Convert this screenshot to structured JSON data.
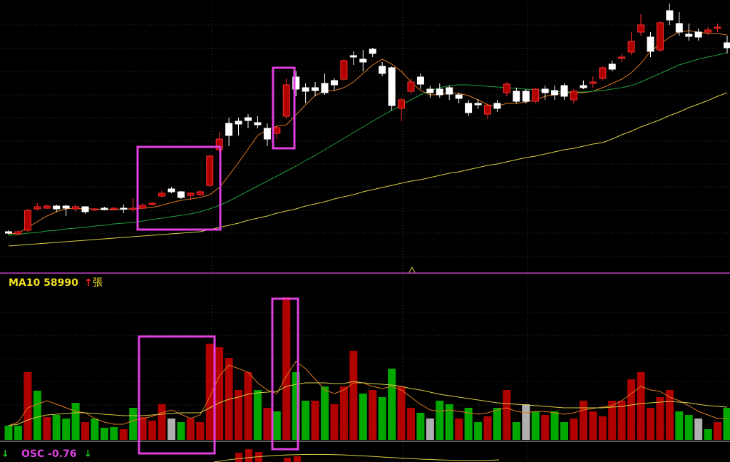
{
  "chart_data": [
    {
      "type": "candlestick",
      "ylim": [
        0,
        385
      ],
      "up_color": "#b00000",
      "up_edge": "#ff3030",
      "down_color": "#ffffff",
      "wick_color": "#ffffff",
      "candles": [
        [
          60,
          62,
          56,
          58
        ],
        [
          57,
          62,
          55,
          60
        ],
        [
          62,
          92,
          60,
          90
        ],
        [
          92,
          100,
          90,
          95
        ],
        [
          93,
          98,
          92,
          96
        ],
        [
          96,
          98,
          88,
          92
        ],
        [
          96,
          98,
          82,
          93
        ],
        [
          92,
          98,
          88,
          95
        ],
        [
          95,
          96,
          85,
          88
        ],
        [
          91,
          93,
          89,
          92
        ],
        [
          93,
          95,
          90,
          91
        ],
        [
          92,
          94,
          90,
          93
        ],
        [
          93,
          98,
          86,
          92
        ],
        [
          92,
          107,
          88,
          93
        ],
        [
          93,
          100,
          92,
          97
        ],
        [
          98,
          101,
          97,
          100
        ],
        [
          110,
          117,
          108,
          114
        ],
        [
          120,
          123,
          114,
          116
        ],
        [
          116,
          117,
          106,
          108
        ],
        [
          111,
          115,
          104,
          114
        ],
        [
          112,
          118,
          110,
          116
        ],
        [
          125,
          168,
          123,
          166
        ],
        [
          175,
          200,
          172,
          190
        ],
        [
          212,
          220,
          180,
          195
        ],
        [
          215,
          220,
          195,
          211
        ],
        [
          220,
          225,
          205,
          216
        ],
        [
          213,
          222,
          205,
          210
        ],
        [
          205,
          212,
          180,
          190
        ],
        [
          198,
          210,
          190,
          206
        ],
        [
          222,
          275,
          218,
          266
        ],
        [
          277,
          285,
          250,
          260
        ],
        [
          262,
          268,
          240,
          257
        ],
        [
          262,
          270,
          250,
          258
        ],
        [
          268,
          282,
          252,
          255
        ],
        [
          272,
          275,
          258,
          266
        ],
        [
          274,
          302,
          272,
          300
        ],
        [
          307,
          313,
          294,
          305
        ],
        [
          302,
          315,
          285,
          298
        ],
        [
          316,
          318,
          305,
          310
        ],
        [
          292,
          298,
          278,
          282
        ],
        [
          290,
          292,
          230,
          237
        ],
        [
          233,
          247,
          215,
          245
        ],
        [
          257,
          275,
          253,
          270
        ],
        [
          277,
          282,
          260,
          267
        ],
        [
          260,
          265,
          248,
          255
        ],
        [
          260,
          268,
          248,
          252
        ],
        [
          262,
          265,
          245,
          253
        ],
        [
          252,
          255,
          240,
          247
        ],
        [
          240,
          245,
          222,
          227
        ],
        [
          240,
          246,
          232,
          238
        ],
        [
          225,
          240,
          218,
          237
        ],
        [
          240,
          245,
          228,
          233
        ],
        [
          255,
          270,
          250,
          267
        ],
        [
          257,
          262,
          240,
          243
        ],
        [
          257,
          260,
          240,
          243
        ],
        [
          243,
          262,
          240,
          260
        ],
        [
          260,
          265,
          245,
          255
        ],
        [
          258,
          265,
          245,
          252
        ],
        [
          265,
          268,
          245,
          250
        ],
        [
          245,
          260,
          240,
          257
        ],
        [
          265,
          272,
          260,
          262
        ],
        [
          268,
          278,
          262,
          270
        ],
        [
          275,
          292,
          272,
          290
        ],
        [
          295,
          300,
          285,
          288
        ],
        [
          303,
          310,
          298,
          305
        ],
        [
          312,
          340,
          308,
          327
        ],
        [
          340,
          365,
          335,
          350
        ],
        [
          333,
          340,
          305,
          313
        ],
        [
          315,
          355,
          312,
          353
        ],
        [
          370,
          380,
          350,
          357
        ],
        [
          352,
          368,
          335,
          340
        ],
        [
          337,
          352,
          328,
          334
        ],
        [
          340,
          345,
          328,
          333
        ],
        [
          340,
          347,
          336,
          343
        ],
        [
          346,
          352,
          340,
          347
        ],
        [
          325,
          335,
          310,
          318
        ]
      ],
      "lines": [
        {
          "color": "#e07a20",
          "values": [
            57,
            58,
            66,
            74,
            82,
            88,
            92,
            93,
            92,
            92,
            91,
            91,
            92,
            92,
            93,
            94,
            97,
            101,
            104,
            106,
            108,
            112,
            122,
            139,
            157,
            176,
            195,
            203,
            208,
            210,
            224,
            238,
            251,
            258,
            258,
            262,
            270,
            282,
            294,
            302,
            295,
            285,
            270,
            258,
            252,
            252,
            255,
            254,
            251,
            245,
            238,
            236,
            240,
            240,
            242,
            245,
            250,
            252,
            255,
            255,
            255,
            257,
            262,
            268,
            274,
            283,
            296,
            313,
            323,
            333,
            340,
            342,
            340,
            338,
            338,
            336
          ]
        },
        {
          "color": "#1f9e3a",
          "values": [
            55,
            56,
            58,
            59,
            61,
            62,
            64,
            65,
            66,
            68,
            69,
            71,
            72,
            73,
            75,
            77,
            79,
            81,
            83,
            85,
            88,
            92,
            97,
            103,
            110,
            117,
            124,
            131,
            138,
            145,
            152,
            160,
            167,
            175,
            183,
            191,
            199,
            207,
            215,
            223,
            230,
            238,
            245,
            252,
            258,
            262,
            265,
            266,
            266,
            265,
            264,
            263,
            262,
            261,
            260,
            259,
            258,
            257,
            256,
            256,
            256,
            257,
            258,
            260,
            262,
            265,
            270,
            276,
            282,
            288,
            294,
            298,
            302,
            305,
            308,
            311
          ]
        },
        {
          "color": "#d8d040",
          "values": [
            40,
            41,
            42,
            43,
            44,
            45,
            46,
            47,
            48,
            49,
            50,
            51,
            52,
            53,
            54,
            55,
            56,
            57,
            58,
            59,
            60,
            63,
            66,
            69,
            72,
            76,
            79,
            82,
            86,
            89,
            92,
            96,
            99,
            102,
            106,
            109,
            112,
            116,
            119,
            122,
            125,
            128,
            131,
            133,
            136,
            139,
            142,
            144,
            147,
            150,
            153,
            155,
            158,
            161,
            164,
            166,
            169,
            172,
            175,
            177,
            180,
            183,
            185,
            190,
            196,
            201,
            207,
            212,
            217,
            223,
            228,
            234,
            239,
            244,
            250,
            255
          ]
        }
      ]
    },
    {
      "type": "bar",
      "title": "MA10 58990",
      "title_arrow": "↑",
      "unit": "張",
      "ylim": [
        0,
        232
      ],
      "values": [
        20,
        20,
        95,
        69,
        32,
        35,
        30,
        52,
        25,
        30,
        17,
        18,
        15,
        45,
        32,
        27,
        50,
        30,
        25,
        30,
        25,
        135,
        130,
        115,
        70,
        95,
        70,
        45,
        40,
        200,
        95,
        55,
        55,
        75,
        50,
        75,
        125,
        65,
        70,
        60,
        100,
        75,
        45,
        38,
        30,
        55,
        50,
        30,
        45,
        25,
        33,
        45,
        70,
        25,
        50,
        40,
        35,
        40,
        25,
        30,
        55,
        40,
        33,
        55,
        55,
        85,
        95,
        45,
        60,
        70,
        40,
        35,
        30,
        15,
        25,
        45
      ],
      "colors": [
        "#00a800",
        "#00a800",
        "#b00000",
        "#00a800",
        "#b00000",
        "#00a800",
        "#00a800",
        "#00a800",
        "#b00000",
        "#00a800",
        "#00a800",
        "#00a800",
        "#b00000",
        "#00a800",
        "#b00000",
        "#b00000",
        "#b00000",
        "#b0b0b0",
        "#00a800",
        "#b00000",
        "#b00000",
        "#b00000",
        "#b00000",
        "#b00000",
        "#b00000",
        "#b00000",
        "#00a800",
        "#b00000",
        "#00a800",
        "#b00000",
        "#00a800",
        "#00a800",
        "#b00000",
        "#00a800",
        "#b00000",
        "#b00000",
        "#b00000",
        "#00a800",
        "#b00000",
        "#00a800",
        "#00a800",
        "#b00000",
        "#b00000",
        "#00a800",
        "#b0b0b0",
        "#00a800",
        "#00a800",
        "#b00000",
        "#00a800",
        "#00a800",
        "#b00000",
        "#00a800",
        "#b00000",
        "#00a800",
        "#b0b0b0",
        "#00a800",
        "#b00000",
        "#00a800",
        "#00a800",
        "#b00000",
        "#b00000",
        "#b00000",
        "#b00000",
        "#b00000",
        "#b00000",
        "#b00000",
        "#b00000",
        "#b00000",
        "#b00000",
        "#b00000",
        "#00a800",
        "#00a800",
        "#b0b0b0",
        "#00a800",
        "#b00000",
        "#00a800"
      ],
      "lines": [
        {
          "color": "#e07a20",
          "values": [
            20,
            25,
            45,
            50,
            55,
            50,
            45,
            40,
            38,
            30,
            25,
            22,
            22,
            27,
            30,
            33,
            38,
            42,
            36,
            30,
            35,
            60,
            90,
            105,
            100,
            95,
            80,
            70,
            65,
            90,
            110,
            100,
            85,
            70,
            65,
            70,
            80,
            80,
            75,
            72,
            75,
            70,
            60,
            50,
            42,
            40,
            42,
            40,
            38,
            36,
            38,
            42,
            45,
            40,
            38,
            40,
            40,
            38,
            36,
            38,
            42,
            44,
            46,
            48,
            55,
            65,
            75,
            70,
            68,
            60,
            55,
            48,
            40,
            35,
            30,
            30
          ]
        },
        {
          "color": "#d8d040",
          "values": [
            20,
            22,
            28,
            32,
            35,
            36,
            37,
            38,
            38,
            37,
            36,
            35,
            34,
            34,
            34,
            35,
            36,
            37,
            38,
            38,
            38,
            45,
            52,
            57,
            60,
            64,
            66,
            67,
            68,
            75,
            78,
            80,
            80,
            80,
            79,
            79,
            82,
            80,
            79,
            78,
            77,
            75,
            72,
            70,
            67,
            64,
            62,
            60,
            58,
            56,
            54,
            52,
            51,
            50,
            49,
            48,
            47,
            46,
            45,
            45,
            45,
            45,
            45,
            46,
            47,
            49,
            51,
            52,
            53,
            54,
            53,
            52,
            50,
            48,
            47,
            46
          ]
        }
      ]
    }
  ],
  "footer": {
    "label": "OSC -0.76",
    "arrows": [
      "↓",
      "↓"
    ]
  }
}
